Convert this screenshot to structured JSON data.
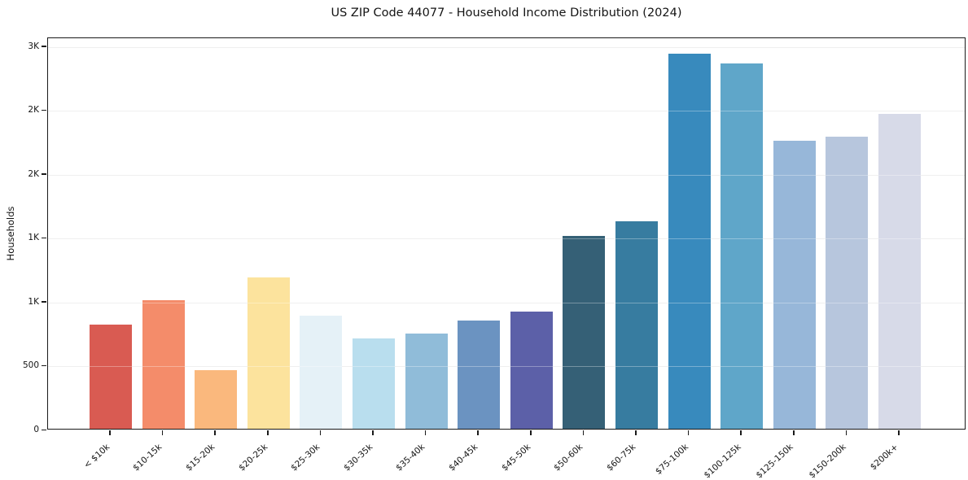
{
  "chart_data": {
    "type": "bar",
    "title": "US ZIP Code 44077 - Household Income Distribution (2024)",
    "xlabel": "",
    "ylabel": "Households",
    "categories": [
      "< $10k",
      "$10-15k",
      "$15-20k",
      "$20-25k",
      "$25-30k",
      "$30-35k",
      "$35-40k",
      "$40-45k",
      "$45-50k",
      "$50-60k",
      "$60-75k",
      "$75-100k",
      "$100-125k",
      "$125-150k",
      "$150-200k",
      "$200k+"
    ],
    "values": [
      815,
      1005,
      460,
      1185,
      885,
      710,
      745,
      850,
      920,
      1510,
      1625,
      2935,
      2860,
      2255,
      2285,
      2465
    ],
    "bar_colors": [
      "#d95b52",
      "#f48c6a",
      "#fab87d",
      "#fce39d",
      "#e5f1f7",
      "#b9deee",
      "#90bcd9",
      "#6b93c1",
      "#5c60a8",
      "#356076",
      "#377ca0",
      "#388abd",
      "#5fa6c9",
      "#97b7d9",
      "#b7c6dd",
      "#d7dae8"
    ],
    "ylim": [
      0,
      3070
    ],
    "yticks": [
      {
        "value": 0,
        "label": "0"
      },
      {
        "value": 500,
        "label": "500"
      },
      {
        "value": 1000,
        "label": "1K"
      },
      {
        "value": 1500,
        "label": "1K"
      },
      {
        "value": 2000,
        "label": "2K"
      },
      {
        "value": 2500,
        "label": "2K"
      },
      {
        "value": 3000,
        "label": "3K"
      }
    ],
    "grid": "horizontal",
    "grid_color": "#e7e7e7",
    "spine_color": "#1a1a1a",
    "background": "#ffffff",
    "legend": "none"
  }
}
